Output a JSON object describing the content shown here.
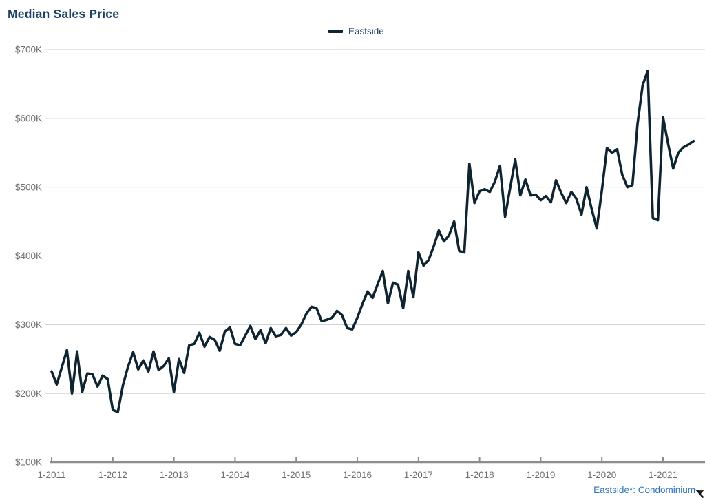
{
  "title": "Median Sales Price",
  "legend": {
    "label": "Eastside"
  },
  "footer": {
    "note": "Eastside*: Condominium"
  },
  "colors": {
    "line": "#0e2430",
    "title_text": "#1e4167",
    "legend_text": "#1f3a5f",
    "grid_line": "#cccccc",
    "axis_line": "#8c8c8c",
    "axis_label": "#6e6e6e",
    "footer_text": "#2f74bd"
  },
  "chart_data": {
    "type": "line",
    "title": "Median Sales Price",
    "legend_entries": [
      "Eastside"
    ],
    "grid": "horizontal",
    "ylim": [
      100,
      700
    ],
    "y_unit": "USD thousands",
    "y_ticks": [
      {
        "label": "$100K",
        "value": 100
      },
      {
        "label": "$200K",
        "value": 200
      },
      {
        "label": "$300K",
        "value": 300
      },
      {
        "label": "$400K",
        "value": 400
      },
      {
        "label": "$500K",
        "value": 500
      },
      {
        "label": "$600K",
        "value": 600
      },
      {
        "label": "$700K",
        "value": 700
      }
    ],
    "x_tick_labels": [
      "1-2011",
      "1-2012",
      "1-2013",
      "1-2014",
      "1-2015",
      "1-2016",
      "1-2017",
      "1-2018",
      "1-2019",
      "1-2020",
      "1-2021"
    ],
    "series": [
      {
        "name": "Eastside",
        "start": "1-2011",
        "frequency": "monthly",
        "values_k": [
          232,
          213,
          238,
          263,
          200,
          261,
          202,
          229,
          228,
          210,
          226,
          221,
          176,
          173,
          212,
          239,
          260,
          235,
          248,
          232,
          261,
          234,
          240,
          251,
          202,
          250,
          230,
          270,
          272,
          288,
          268,
          282,
          278,
          262,
          290,
          296,
          272,
          270,
          284,
          298,
          279,
          292,
          273,
          295,
          283,
          285,
          295,
          284,
          289,
          300,
          316,
          326,
          324,
          305,
          307,
          310,
          320,
          314,
          295,
          293,
          310,
          330,
          348,
          339,
          359,
          378,
          331,
          361,
          358,
          324,
          378,
          340,
          405,
          386,
          394,
          414,
          437,
          421,
          430,
          450,
          407,
          405,
          534,
          477,
          494,
          497,
          493,
          508,
          531,
          457,
          499,
          540,
          488,
          511,
          488,
          489,
          481,
          487,
          478,
          510,
          492,
          477,
          493,
          483,
          460,
          500,
          468,
          440,
          495,
          557,
          550,
          555,
          518,
          500,
          503,
          592,
          648,
          669,
          455,
          452,
          602,
          563,
          527,
          550,
          558,
          562,
          567
        ]
      }
    ]
  }
}
